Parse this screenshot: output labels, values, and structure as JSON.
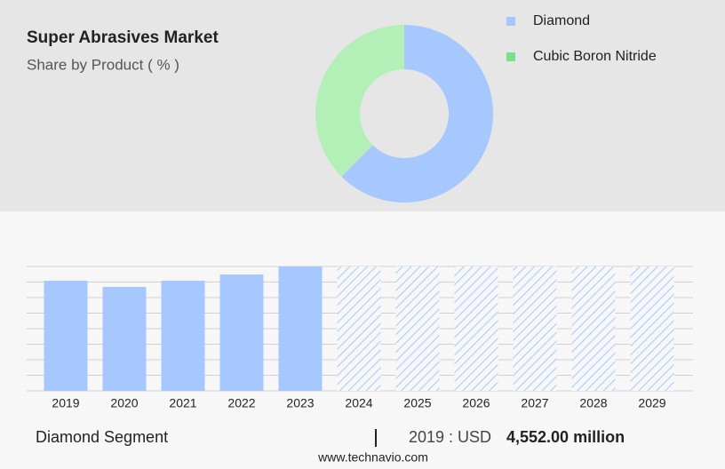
{
  "chart_data": [
    {
      "type": "pie",
      "title": "Super Abrasives Market",
      "subtitle": "Share by Product ( % )",
      "categories": [
        "Diamond",
        "Cubic Boron Nitride"
      ],
      "values": [
        62.5,
        37.5
      ],
      "colors": [
        "#a6c8ff",
        "#b3f0b8"
      ],
      "legend_colors": [
        "#a6c8ff",
        "#79e08d"
      ]
    },
    {
      "type": "bar",
      "categories": [
        "2019",
        "2020",
        "2021",
        "2022",
        "2023",
        "2024",
        "2025",
        "2026",
        "2027",
        "2028",
        "2029"
      ],
      "values": [
        4552,
        4295,
        4552,
        4808,
        5140,
        null,
        null,
        null,
        null,
        null,
        null
      ],
      "color": "#a6c8ff",
      "ylim": [
        0,
        5140
      ],
      "grid": true
    }
  ],
  "footer": {
    "segment": "Diamond Segment",
    "year_currency": "2019 : USD",
    "value": "4,552.00 million"
  },
  "source": "www.technavio.com"
}
